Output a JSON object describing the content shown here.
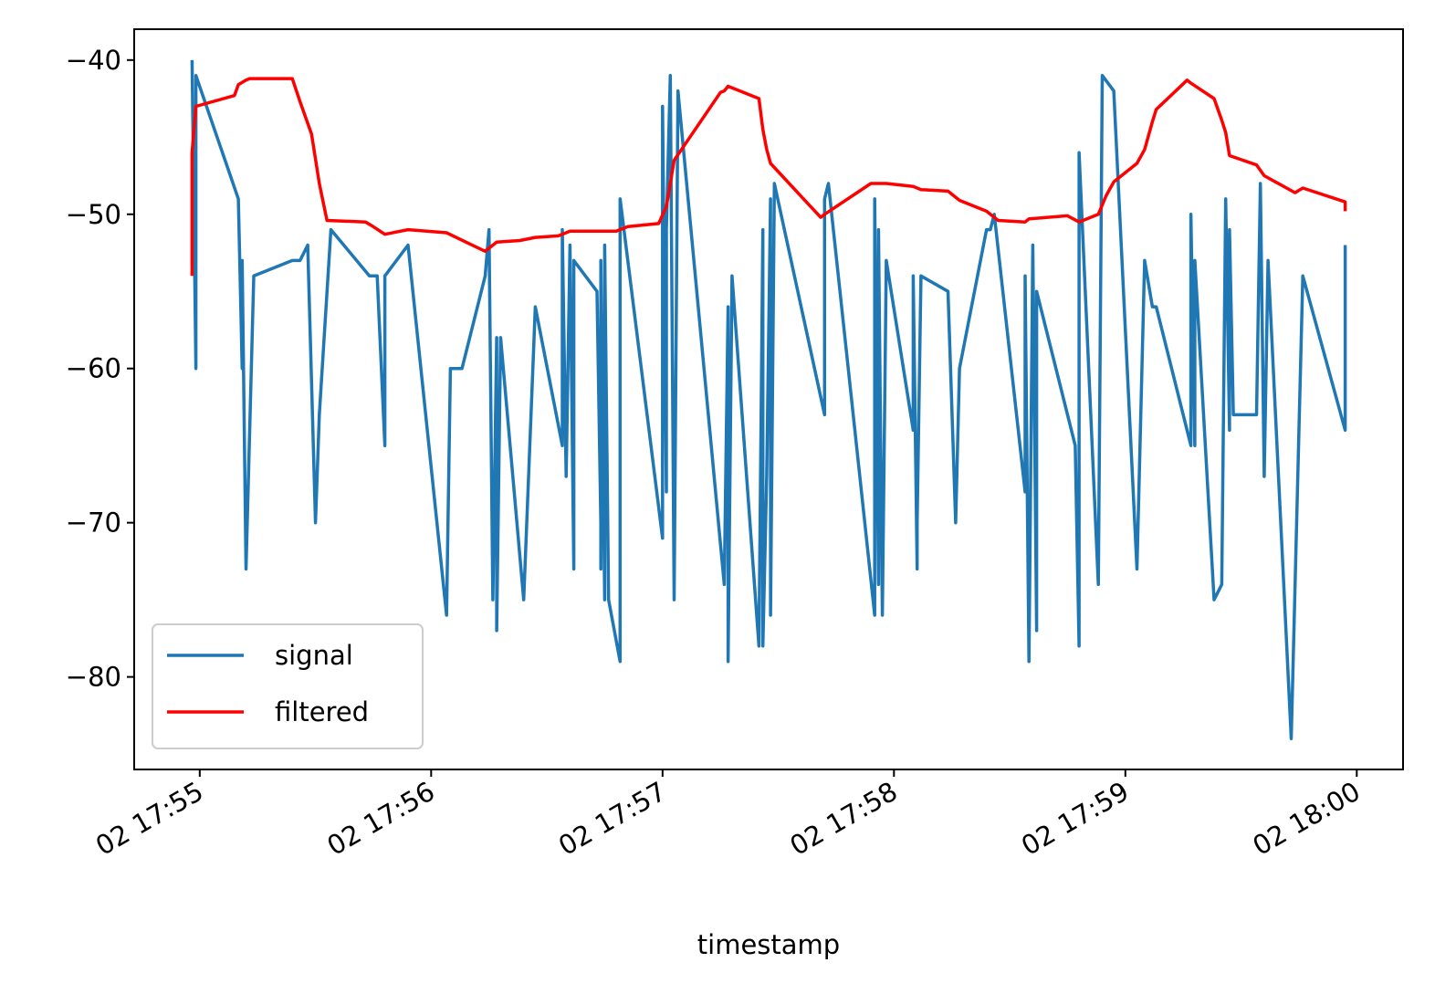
{
  "chart_data": {
    "type": "line",
    "xlabel": "timestamp",
    "xlim": [
      64483,
      64812
    ],
    "xticks": [
      {
        "value": 64500,
        "label": "02 17:55"
      },
      {
        "value": 64560,
        "label": "02 17:56"
      },
      {
        "value": 64620,
        "label": "02 17:57"
      },
      {
        "value": 64680,
        "label": "02 17:58"
      },
      {
        "value": 64740,
        "label": "02 17:59"
      },
      {
        "value": 64800,
        "label": "02 18:00"
      }
    ],
    "ylim": [
      -86,
      -38
    ],
    "yticks": [
      {
        "value": -80,
        "label": "−80"
      },
      {
        "value": -70,
        "label": "−70"
      },
      {
        "value": -60,
        "label": "−60"
      },
      {
        "value": -50,
        "label": "−50"
      },
      {
        "value": -40,
        "label": "−40"
      }
    ],
    "grid": false,
    "legend": "lower left",
    "series": [
      {
        "name": "signal",
        "color": "#1f77b4",
        "x": [
          64498,
          64499,
          64499,
          64510,
          64511,
          64511,
          64512,
          64514,
          64524,
          64526,
          64528,
          64530,
          64531,
          64534,
          64544,
          64546,
          64548,
          64548,
          64554,
          64564,
          64565,
          64568,
          64574,
          64575,
          64576,
          64577,
          64577,
          64578,
          64584,
          64587,
          64594,
          64594,
          64595,
          64596,
          64597,
          64597,
          64603,
          64604,
          64604,
          64604,
          64605,
          64605,
          64606,
          64609,
          64609,
          64620,
          64620,
          64621,
          64621,
          64622,
          64623,
          64624,
          64624,
          64636,
          64637,
          64637,
          64638,
          64645,
          64646,
          64646,
          64647,
          64648,
          64648,
          64649,
          64662,
          64662,
          64663,
          64675,
          64675,
          64676,
          64676,
          64677,
          64678,
          64685,
          64685,
          64686,
          64686,
          64687,
          64694,
          64696,
          64697,
          64704,
          64705,
          64706,
          64714,
          64714,
          64715,
          64716,
          64717,
          64717,
          64727,
          64728,
          64728,
          64733,
          64734,
          64737,
          64743,
          64745,
          64747,
          64748,
          64757,
          64757,
          64758,
          64758,
          64763,
          64765,
          64766,
          64767,
          64767,
          64768,
          64774,
          64775,
          64776,
          64777,
          64783,
          64786,
          64797,
          64797
        ],
        "values": [
          -40,
          -60,
          -41,
          -49,
          -60,
          -53,
          -73,
          -54,
          -53,
          -53,
          -52,
          -70,
          -63,
          -51,
          -54,
          -54,
          -65,
          -54,
          -52,
          -76,
          -60,
          -60,
          -54,
          -51,
          -75,
          -58,
          -77,
          -58,
          -75,
          -56,
          -65,
          -51,
          -67,
          -52,
          -73,
          -53,
          -55,
          -70,
          -73,
          -53,
          -75,
          -52,
          -75,
          -79,
          -49,
          -71,
          -43,
          -68,
          -51,
          -41,
          -75,
          -42,
          -42,
          -74,
          -56,
          -79,
          -54,
          -78,
          -51,
          -78,
          -67,
          -49,
          -76,
          -48,
          -63,
          -49,
          -48,
          -76,
          -49,
          -74,
          -51,
          -76,
          -53,
          -64,
          -54,
          -73,
          -70,
          -54,
          -55,
          -70,
          -60,
          -51,
          -51,
          -50,
          -68,
          -54,
          -79,
          -52,
          -77,
          -55,
          -65,
          -78,
          -46,
          -74,
          -41,
          -42,
          -73,
          -53,
          -56,
          -56,
          -65,
          -50,
          -65,
          -53,
          -75,
          -74,
          -49,
          -64,
          -51,
          -63,
          -63,
          -48,
          -67,
          -53,
          -84,
          -54,
          -64,
          -52
        ]
      },
      {
        "name": "filtered",
        "color": "#ff0000",
        "x": [
          64498,
          64498,
          64499,
          64509,
          64510,
          64512,
          64513,
          64524,
          64526,
          64529,
          64531,
          64533,
          64543,
          64545,
          64548,
          64554,
          64564,
          64569,
          64574,
          64577,
          64583,
          64587,
          64593,
          64596,
          64608,
          64611,
          64619,
          64621,
          64623,
          64635,
          64636,
          64637,
          64645,
          64646,
          64647,
          64648,
          64661,
          64662,
          64674,
          64678,
          64685,
          64687,
          64694,
          64697,
          64704,
          64707,
          64714,
          64715,
          64725,
          64728,
          64733,
          64735,
          64737,
          64743,
          64745,
          64747,
          64748,
          64756,
          64757,
          64763,
          64765,
          64766,
          64767,
          64774,
          64776,
          64784,
          64786,
          64797,
          64797
        ],
        "values": [
          -54,
          -46,
          -43,
          -42.3,
          -41.6,
          -41.3,
          -41.2,
          -41.2,
          -42.7,
          -44.8,
          -48,
          -50.4,
          -50.5,
          -50.8,
          -51.3,
          -51,
          -51.2,
          -51.8,
          -52.4,
          -51.8,
          -51.7,
          -51.5,
          -51.4,
          -51.1,
          -51.1,
          -50.8,
          -50.6,
          -49.5,
          -46.5,
          -42.1,
          -42,
          -41.7,
          -42.5,
          -44.5,
          -45.8,
          -46.7,
          -50.2,
          -50,
          -48,
          -48,
          -48.2,
          -48.4,
          -48.5,
          -49.1,
          -49.8,
          -50.4,
          -50.5,
          -50.3,
          -50.1,
          -50.5,
          -50,
          -48.8,
          -47.9,
          -46.7,
          -45.8,
          -44,
          -43.2,
          -41.3,
          -41.5,
          -42.5,
          -43.9,
          -44.7,
          -46.2,
          -46.8,
          -47.5,
          -48.6,
          -48.3,
          -49.2,
          -49.8
        ]
      }
    ]
  }
}
